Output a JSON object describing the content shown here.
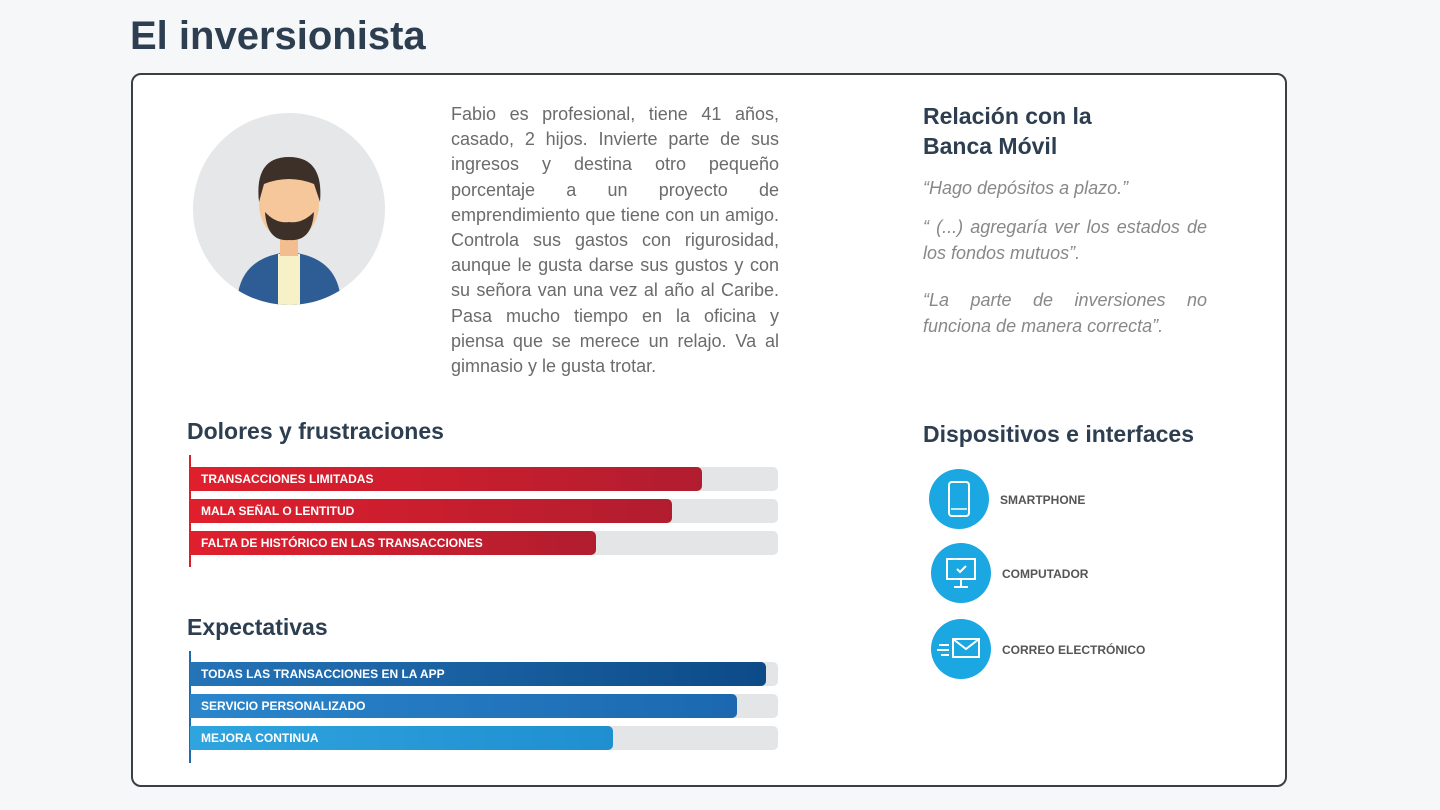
{
  "title": "El inversionista",
  "description": "Fabio es profesional, tiene 41 años, casado, 2 hijos. Invierte parte de sus ingresos y destina otro pequeño porcentaje a un proyecto de emprendimiento que tiene con un amigo. Controla sus gastos con rigurosidad, aunque le gusta darse sus gustos y con su señora van una vez al año al Caribe. Pasa mucho tiempo en la oficina y piensa que se merece un relajo. Va al gimnasio y le gusta trotar.",
  "relation": {
    "title": "Relación con la Banca Móvil",
    "quotes": [
      "“Hago depósitos a plazo.”",
      "“ (...) agregaría ver los estados de los fondos mutuos”.",
      "“La parte de inversiones no funciona de manera correcta”."
    ]
  },
  "pains": {
    "title": "Dolores y frustraciones",
    "items": [
      {
        "label": "TRANSACCIONES LIMITADAS",
        "level": 87
      },
      {
        "label": "MALA SEÑAL O LENTITUD",
        "level": 82
      },
      {
        "label": "FALTA DE HISTÓRICO EN LAS TRANSACCIONES",
        "level": 69
      }
    ]
  },
  "expectations": {
    "title": "Expectativas",
    "items": [
      {
        "label": "TODAS LAS TRANSACCIONES EN LA APP",
        "level": 98
      },
      {
        "label": "SERVICIO PERSONALIZADO",
        "level": 93
      },
      {
        "label": "MEJORA CONTINUA",
        "level": 72
      }
    ]
  },
  "devices": {
    "title": "Dispositivos e interfaces",
    "items": [
      "SMARTPHONE",
      "COMPUTADOR",
      "CORREO ELECTRÓNICO"
    ]
  }
}
